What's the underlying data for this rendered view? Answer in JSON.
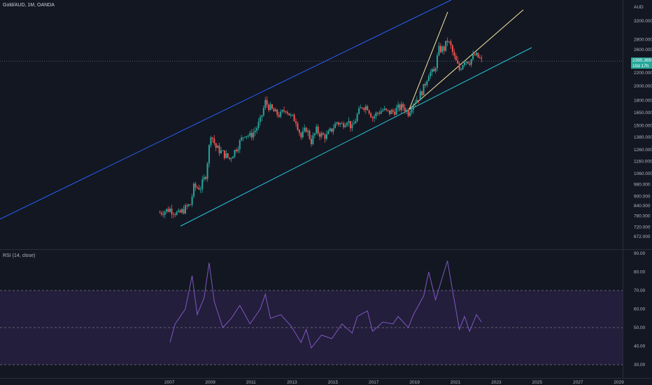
{
  "header": {
    "symbol": "Gold/AUD, 1M, OANDA",
    "currency": "AUD"
  },
  "rsi_panel": {
    "label": "RSI (14, close)"
  },
  "last_price": {
    "value": "2395.389",
    "countdown": "10d 17h"
  },
  "colors": {
    "background": "#131722",
    "up": "#26a69a",
    "down": "#ef5350",
    "channel_upper": "#2962ff",
    "channel_lower": "#26c6da",
    "wedge": "#f5e7a1",
    "rsi_line": "#7e57c2",
    "rsi_band": "#2a2244"
  },
  "chart_data": [
    {
      "type": "candlestick",
      "title": "Gold/AUD, 1M, OANDA",
      "x_ticks": [
        "2007",
        "2009",
        "2011",
        "2013",
        "2015",
        "2017",
        "2019",
        "2021",
        "2023",
        "2025",
        "2027",
        "2029"
      ],
      "y_ticks": [
        672,
        720,
        780,
        840,
        900,
        980,
        1060,
        1160,
        1260,
        1380,
        1500,
        1650,
        1800,
        2000,
        2200,
        2400,
        2600,
        2800,
        3200
      ],
      "y_scale": "log",
      "ylim": [
        650,
        3300
      ],
      "series": [
        {
          "points": [
            [
              "2006-07",
              800
            ],
            [
              "2007-01",
              820
            ],
            [
              "2007-06",
              790
            ],
            [
              "2008-01",
              850
            ],
            [
              "2008-03",
              960
            ],
            [
              "2008-07",
              960
            ],
            [
              "2008-10",
              1050
            ],
            [
              "2009-01",
              1420
            ],
            [
              "2009-04",
              1280
            ],
            [
              "2009-08",
              1230
            ],
            [
              "2009-12",
              1180
            ],
            [
              "2010-03",
              1250
            ],
            [
              "2010-06",
              1330
            ],
            [
              "2010-09",
              1420
            ],
            [
              "2010-12",
              1390
            ],
            [
              "2011-03",
              1450
            ],
            [
              "2011-06",
              1550
            ],
            [
              "2011-09",
              1780
            ],
            [
              "2011-12",
              1700
            ],
            [
              "2012-03",
              1640
            ],
            [
              "2012-06",
              1620
            ],
            [
              "2012-09",
              1700
            ],
            [
              "2012-12",
              1600
            ],
            [
              "2013-03",
              1560
            ],
            [
              "2013-06",
              1380
            ],
            [
              "2013-09",
              1470
            ],
            [
              "2013-12",
              1340
            ],
            [
              "2014-03",
              1450
            ],
            [
              "2014-06",
              1400
            ],
            [
              "2014-09",
              1390
            ],
            [
              "2014-12",
              1460
            ],
            [
              "2015-03",
              1540
            ],
            [
              "2015-06",
              1510
            ],
            [
              "2015-09",
              1570
            ],
            [
              "2015-12",
              1470
            ],
            [
              "2016-03",
              1620
            ],
            [
              "2016-06",
              1730
            ],
            [
              "2016-09",
              1720
            ],
            [
              "2016-12",
              1590
            ],
            [
              "2017-03",
              1650
            ],
            [
              "2017-06",
              1680
            ],
            [
              "2017-09",
              1650
            ],
            [
              "2017-12",
              1660
            ],
            [
              "2018-03",
              1700
            ],
            [
              "2018-06",
              1720
            ],
            [
              "2018-09",
              1650
            ],
            [
              "2018-12",
              1780
            ],
            [
              "2019-03",
              1840
            ],
            [
              "2019-06",
              1970
            ],
            [
              "2019-09",
              2200
            ],
            [
              "2019-12",
              2200
            ],
            [
              "2020-03",
              2600
            ],
            [
              "2020-06",
              2620
            ],
            [
              "2020-08",
              2780
            ],
            [
              "2020-10",
              2650
            ],
            [
              "2020-12",
              2450
            ],
            [
              "2021-03",
              2250
            ],
            [
              "2021-06",
              2420
            ],
            [
              "2021-09",
              2390
            ],
            [
              "2021-12",
              2500
            ],
            [
              "2022-02",
              2460
            ],
            [
              "2022-04",
              2395
            ]
          ]
        }
      ],
      "drawings": [
        "upper channel line",
        "lower channel line",
        "rising wedge"
      ]
    },
    {
      "type": "line",
      "title": "RSI (14, close)",
      "y_ticks": [
        30,
        40,
        50,
        60,
        70,
        80,
        90
      ],
      "ylim": [
        30,
        90
      ],
      "bands": [
        30,
        50,
        70
      ],
      "series": [
        {
          "name": "RSI (14, close)",
          "points": [
            [
              "2007-01",
              42
            ],
            [
              "2007-04",
              52
            ],
            [
              "2007-10",
              60
            ],
            [
              "2008-02",
              78
            ],
            [
              "2008-05",
              57
            ],
            [
              "2008-09",
              66
            ],
            [
              "2008-12",
              85
            ],
            [
              "2009-03",
              64
            ],
            [
              "2009-08",
              50
            ],
            [
              "2010-01",
              55
            ],
            [
              "2010-06",
              62
            ],
            [
              "2010-12",
              52
            ],
            [
              "2011-06",
              60
            ],
            [
              "2011-09",
              68
            ],
            [
              "2011-12",
              55
            ],
            [
              "2012-06",
              57
            ],
            [
              "2012-12",
              51
            ],
            [
              "2013-06",
              42
            ],
            [
              "2013-09",
              49
            ],
            [
              "2013-12",
              39
            ],
            [
              "2014-06",
              46
            ],
            [
              "2014-12",
              44
            ],
            [
              "2015-06",
              52
            ],
            [
              "2015-12",
              47
            ],
            [
              "2016-03",
              56
            ],
            [
              "2016-09",
              59
            ],
            [
              "2016-12",
              48
            ],
            [
              "2017-06",
              53
            ],
            [
              "2017-12",
              52
            ],
            [
              "2018-03",
              56
            ],
            [
              "2018-09",
              50
            ],
            [
              "2018-12",
              57
            ],
            [
              "2019-06",
              67
            ],
            [
              "2019-09",
              80
            ],
            [
              "2020-01",
              65
            ],
            [
              "2020-05",
              77
            ],
            [
              "2020-08",
              86
            ],
            [
              "2020-11",
              70
            ],
            [
              "2021-03",
              49
            ],
            [
              "2021-06",
              56
            ],
            [
              "2021-09",
              48
            ],
            [
              "2022-01",
              57
            ],
            [
              "2022-04",
              53
            ]
          ]
        }
      ]
    }
  ]
}
